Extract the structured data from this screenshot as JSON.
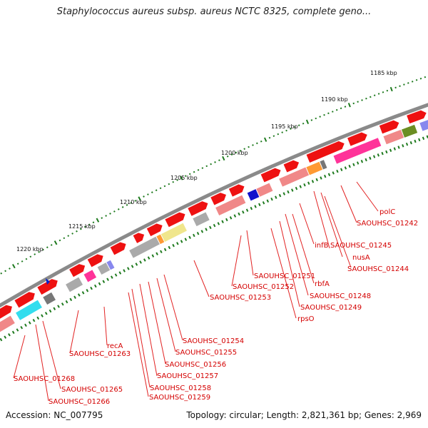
{
  "title": "Staphylococcus aureus subsp. aureus NCTC 8325, complete geno...",
  "accession": "Accession: NC_007795",
  "summary": "Topology: circular; Length: 2,821,361 bp; Genes: 2,969",
  "colors": {
    "backbone": "#8a8a8a",
    "forward_gene": "#ee1111",
    "reverse_gene": "#f08888",
    "tick": "#1e7a1e",
    "label": "#d40000",
    "leader": "#e22222"
  },
  "scale_ticks": [
    "1185 kbp",
    "1190 kbp",
    "1195 kbp",
    "1200 kbp",
    "1205 kbp",
    "1210 kbp",
    "1215 kbp",
    "1220 kbp"
  ],
  "gene_labels": [
    "polC",
    "SAOUHSC_01242",
    "nusA",
    "SAOUHSC_01244",
    "SAOUHSC_01245",
    "infB",
    "rbfA",
    "SAOUHSC_01248",
    "SAOUHSC_01249",
    "SAOUHSC_01251",
    "SAOUHSC_01252",
    "rpsO",
    "SAOUHSC_01253",
    "SAOUHSC_01254",
    "SAOUHSC_01255",
    "SAOUHSC_01256",
    "SAOUHSC_01257",
    "SAOUHSC_01258",
    "SAOUHSC_01259",
    "recA",
    "SAOUHSC_01263",
    "SAOUHSC_01265",
    "SAOUHSC_01266",
    "SAOUHSC_01268"
  ]
}
